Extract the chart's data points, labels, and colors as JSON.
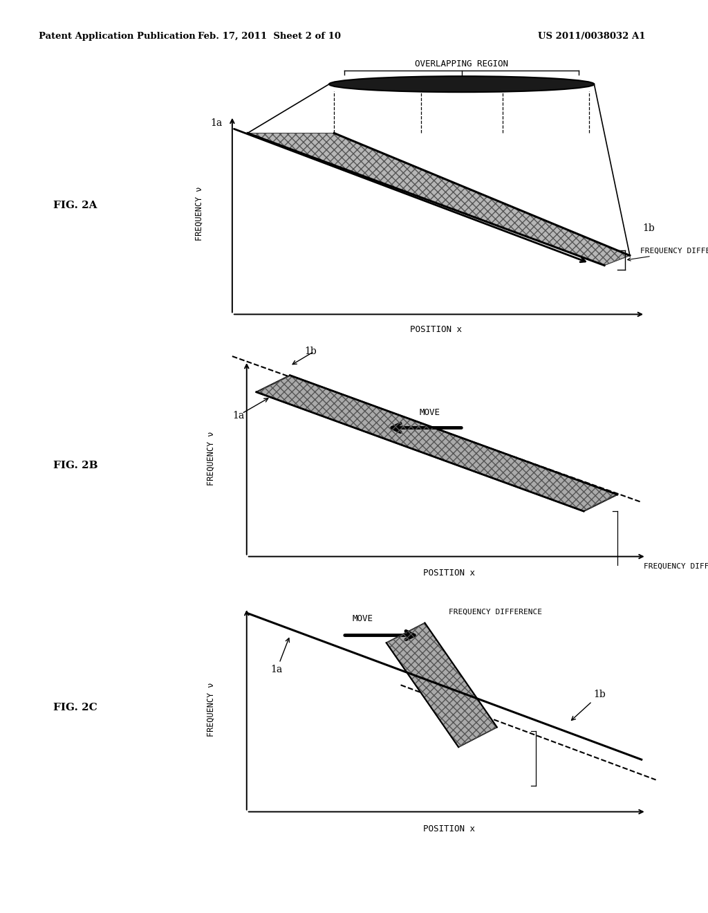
{
  "bg_color": "#ffffff",
  "header_left": "Patent Application Publication",
  "header_mid": "Feb. 17, 2011  Sheet 2 of 10",
  "header_right": "US 2011/0038032 A1",
  "fig2a_label": "FIG. 2A",
  "fig2b_label": "FIG. 2B",
  "fig2c_label": "FIG. 2C",
  "xlabel": "POSITION x",
  "ylabel": "FREQUENCY ν",
  "overlapping_region_text": "OVERLAPPING REGION",
  "freq_diff_text": "FREQUENCY DIFFERENCE",
  "move_text": "MOVE",
  "label_1a": "1a",
  "label_1b": "1b"
}
